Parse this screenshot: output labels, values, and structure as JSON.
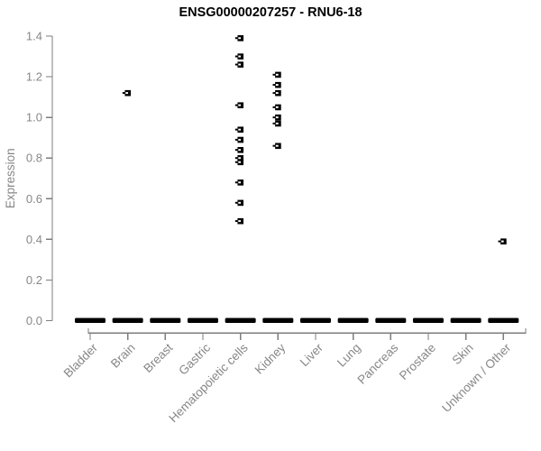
{
  "chart_data": {
    "type": "scatter",
    "title": "ENSG00000207257 - RNU6-18",
    "xlabel": "",
    "ylabel": "Expression",
    "ylim": [
      0.0,
      1.4
    ],
    "yticks": [
      0.0,
      0.2,
      0.4,
      0.6,
      0.8,
      1.0,
      1.2,
      1.4
    ],
    "grid": false,
    "legend": false,
    "marker": "black-square-with-white-notch",
    "categories": [
      {
        "label": "Bladder",
        "points": [],
        "zero_cluster": true
      },
      {
        "label": "Brain",
        "points": [
          1.12
        ],
        "zero_cluster": true
      },
      {
        "label": "Breast",
        "points": [],
        "zero_cluster": true
      },
      {
        "label": "Gastric",
        "points": [],
        "zero_cluster": true
      },
      {
        "label": "Hematopoietic cells",
        "points": [
          1.39,
          1.3,
          1.26,
          1.06,
          0.94,
          0.89,
          0.84,
          0.8,
          0.78,
          0.68,
          0.58,
          0.49
        ],
        "zero_cluster": true
      },
      {
        "label": "Kidney",
        "points": [
          1.21,
          1.16,
          1.12,
          1.05,
          1.0,
          0.97,
          0.86
        ],
        "zero_cluster": true
      },
      {
        "label": "Liver",
        "points": [],
        "zero_cluster": true
      },
      {
        "label": "Lung",
        "points": [],
        "zero_cluster": true
      },
      {
        "label": "Pancreas",
        "points": [],
        "zero_cluster": true
      },
      {
        "label": "Prostate",
        "points": [],
        "zero_cluster": true
      },
      {
        "label": "Skin",
        "points": [],
        "zero_cluster": true
      },
      {
        "label": "Unknown / Other",
        "points": [
          0.39
        ],
        "zero_cluster": true
      }
    ],
    "colors": {
      "marker": "#000000",
      "axis_line": "#7d7d7d",
      "axis_text": "#878787",
      "title": "#000000",
      "background": "#ffffff"
    }
  }
}
